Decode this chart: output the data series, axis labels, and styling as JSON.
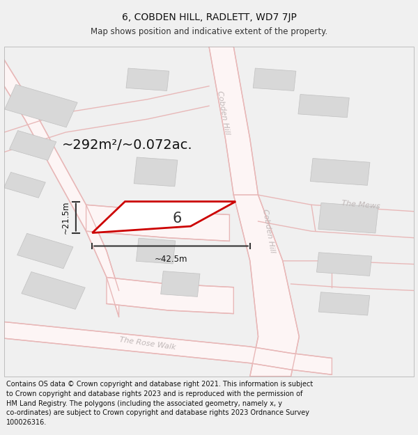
{
  "title_line1": "6, COBDEN HILL, RADLETT, WD7 7JP",
  "title_line2": "Map shows position and indicative extent of the property.",
  "area_text": "~292m²/~0.072ac.",
  "dim_width": "~42.5m",
  "dim_height": "~21.5m",
  "plot_number": "6",
  "footer_lines": [
    "Contains OS data © Crown copyright and database right 2021. This information is subject",
    "to Crown copyright and database rights 2023 and is reproduced with the permission of",
    "HM Land Registry. The polygons (including the associated geometry, namely x, y",
    "co-ordinates) are subject to Crown copyright and database rights 2023 Ordnance Survey",
    "100026316."
  ],
  "bg_color": "#f0f0f0",
  "map_bg": "#ffffff",
  "plot_color": "#cc0000",
  "road_color": "#e8b8b8",
  "road_fill": "#fdf5f5",
  "building_color": "#d8d8d8",
  "building_edge": "#c0c0c0",
  "street_label_color": "#c0b8b8",
  "title_fs": 10,
  "subtitle_fs": 8.5,
  "footer_fs": 7.0,
  "area_fs": 14,
  "dim_fs": 8.5,
  "plot_num_fs": 15
}
